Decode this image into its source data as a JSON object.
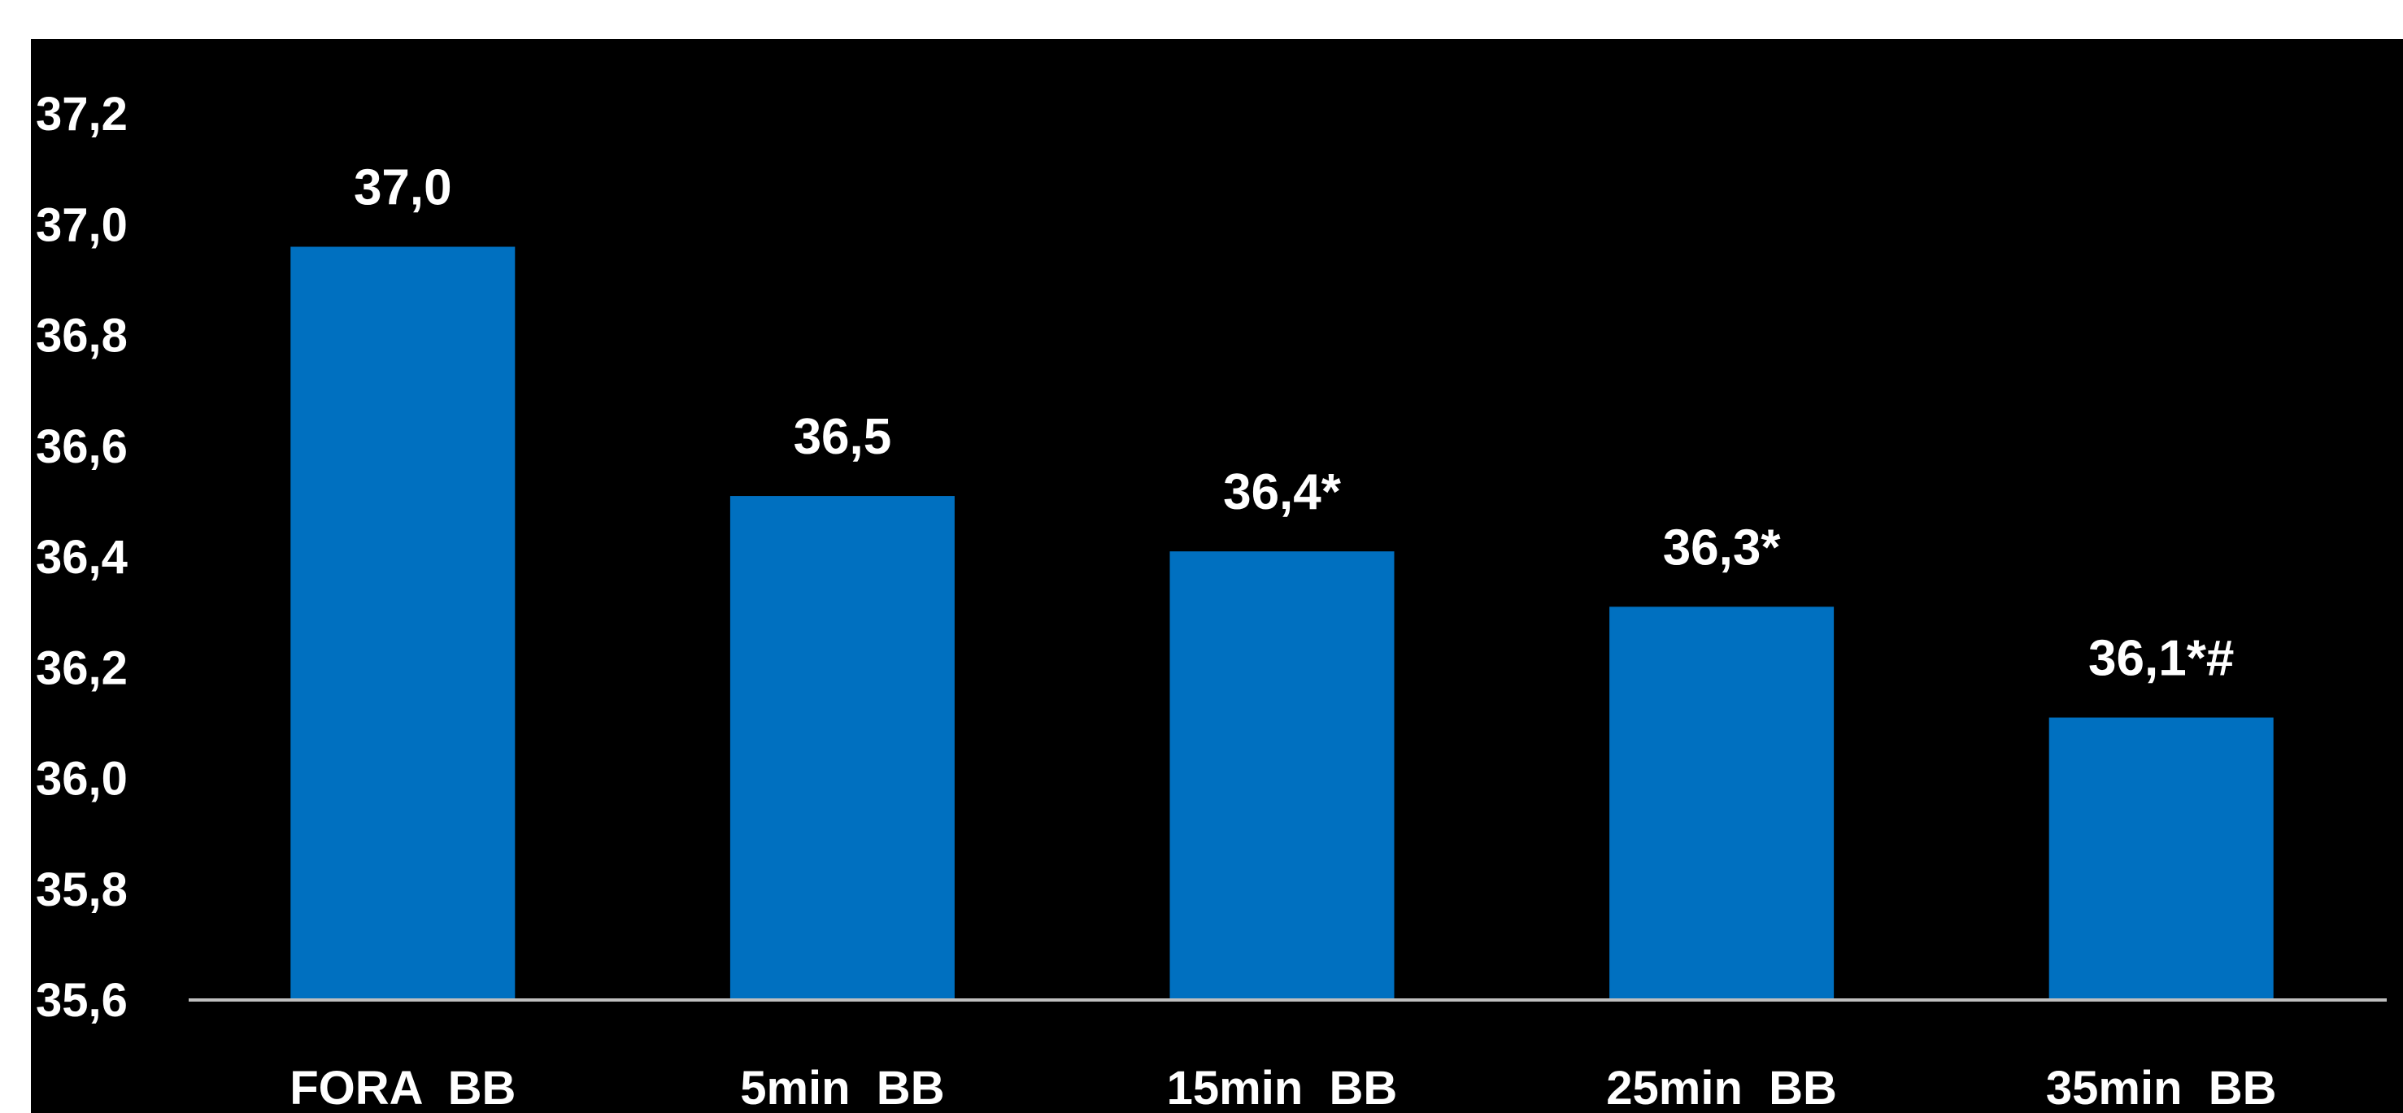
{
  "colors": {
    "background": "#000000",
    "page": "#ffffff",
    "bar": "#0070C0",
    "text": "#ffffff",
    "axis": "#BFBFBF"
  },
  "chart_data": {
    "type": "bar",
    "title": "",
    "xlabel": "",
    "ylabel": "",
    "categories": [
      "FORA  BB",
      "5min  BB",
      "15min  BB",
      "25min  BB",
      "35min  BB"
    ],
    "values": [
      36.96,
      36.51,
      36.41,
      36.31,
      36.11
    ],
    "data_labels": [
      "37,0",
      "36,5",
      "36,4*",
      "36,3*",
      "36,1*#"
    ],
    "ylim": [
      35.6,
      37.2
    ],
    "yticks": [
      35.6,
      35.8,
      36.0,
      36.2,
      36.4,
      36.6,
      36.8,
      37.0,
      37.2
    ],
    "ytick_labels": [
      "35,6",
      "35,8",
      "36,0",
      "36,2",
      "36,4",
      "36,6",
      "36,8",
      "37,0",
      "37,2"
    ],
    "grid": false,
    "legend": "none"
  }
}
